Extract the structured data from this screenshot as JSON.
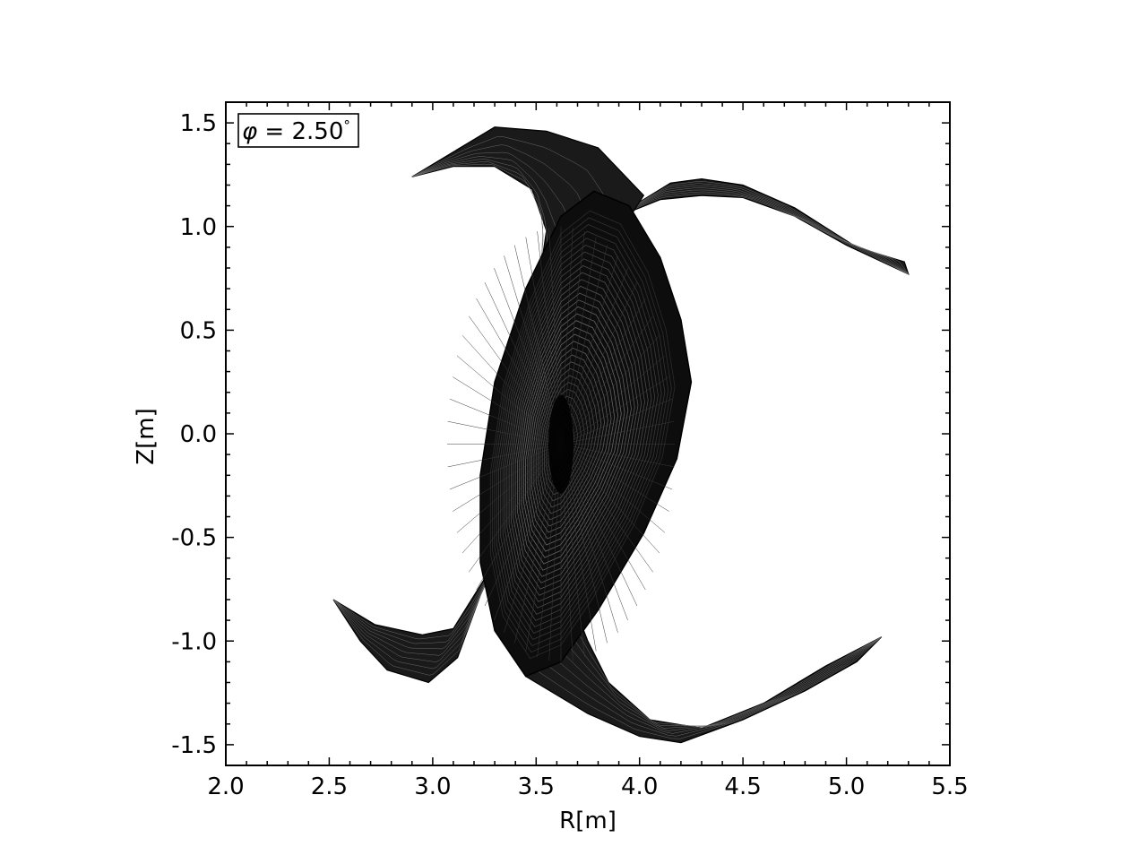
{
  "chart_data": {
    "type": "line",
    "title": "",
    "annotation": {
      "prefix": "φ",
      "equals": " = 2.50",
      "degree": "°"
    },
    "xlabel": "R[m]",
    "ylabel": "Z[m]",
    "xlim": [
      2.0,
      5.5
    ],
    "ylim": [
      -1.6,
      1.6
    ],
    "x_ticks": [
      2.0,
      2.5,
      3.0,
      3.5,
      4.0,
      4.5,
      5.0,
      5.5
    ],
    "x_tick_labels": [
      "2.0",
      "2.5",
      "3.0",
      "3.5",
      "4.0",
      "4.5",
      "5.0",
      "5.5"
    ],
    "y_ticks": [
      1.5,
      1.0,
      0.5,
      0.0,
      -0.5,
      -1.0,
      -1.5
    ],
    "y_tick_labels": [
      "1.5",
      "1.0",
      "0.5",
      "0.0",
      "-0.5",
      "-1.0",
      "-1.5"
    ],
    "minor_tick_step_x": 0.1,
    "minor_tick_step_y": 0.1,
    "ticks_direction": "in",
    "ticks_on_all_sides": true,
    "grid": false,
    "line_color": "#000000",
    "center": [
      3.62,
      -0.05
    ],
    "core_outer_boundary": [
      [
        4.25,
        0.25
      ],
      [
        4.2,
        0.55
      ],
      [
        4.1,
        0.85
      ],
      [
        3.95,
        1.1
      ],
      [
        3.78,
        1.17
      ],
      [
        3.62,
        1.05
      ],
      [
        3.45,
        0.7
      ],
      [
        3.3,
        0.25
      ],
      [
        3.23,
        -0.2
      ],
      [
        3.23,
        -0.62
      ],
      [
        3.3,
        -0.95
      ],
      [
        3.45,
        -1.17
      ],
      [
        3.62,
        -1.1
      ],
      [
        3.8,
        -0.85
      ],
      [
        4.02,
        -0.48
      ],
      [
        4.18,
        -0.12
      ],
      [
        4.25,
        0.25
      ]
    ],
    "legs": [
      {
        "outer": [
          [
            3.97,
            1.1
          ],
          [
            4.15,
            1.21
          ],
          [
            4.3,
            1.23
          ],
          [
            4.5,
            1.2
          ],
          [
            4.75,
            1.09
          ],
          [
            5.05,
            0.9
          ],
          [
            5.28,
            0.83
          ],
          [
            5.3,
            0.77
          ]
        ],
        "inner": [
          [
            5.3,
            0.77
          ],
          [
            5.0,
            0.91
          ],
          [
            4.75,
            1.05
          ],
          [
            4.5,
            1.14
          ],
          [
            4.3,
            1.15
          ],
          [
            4.1,
            1.13
          ],
          [
            3.9,
            1.05
          ]
        ]
      },
      {
        "outer": [
          [
            4.02,
            1.15
          ],
          [
            3.8,
            1.38
          ],
          [
            3.55,
            1.46
          ],
          [
            3.3,
            1.48
          ],
          [
            3.1,
            1.36
          ],
          [
            2.9,
            1.24
          ]
        ],
        "inner": [
          [
            2.9,
            1.24
          ],
          [
            3.1,
            1.29
          ],
          [
            3.3,
            1.29
          ],
          [
            3.48,
            1.18
          ],
          [
            3.55,
            0.98
          ],
          [
            3.52,
            0.78
          ],
          [
            3.45,
            0.6
          ],
          [
            3.35,
            0.3
          ],
          [
            3.28,
            0.0
          ]
        ]
      },
      {
        "outer": [
          [
            3.23,
            -0.78
          ],
          [
            3.12,
            -1.08
          ],
          [
            2.98,
            -1.2
          ],
          [
            2.78,
            -1.14
          ],
          [
            2.65,
            -1.0
          ],
          [
            2.52,
            -0.8
          ]
        ],
        "inner": [
          [
            2.52,
            -0.8
          ],
          [
            2.72,
            -0.92
          ],
          [
            2.95,
            -0.97
          ],
          [
            3.1,
            -0.94
          ],
          [
            3.2,
            -0.78
          ],
          [
            3.3,
            -0.62
          ]
        ]
      },
      {
        "outer": [
          [
            3.45,
            -1.17
          ],
          [
            3.75,
            -1.35
          ],
          [
            4.0,
            -1.46
          ],
          [
            4.2,
            -1.49
          ],
          [
            4.5,
            -1.38
          ],
          [
            4.8,
            -1.24
          ],
          [
            5.05,
            -1.1
          ],
          [
            5.17,
            -0.98
          ]
        ],
        "inner": [
          [
            5.17,
            -0.98
          ],
          [
            4.9,
            -1.12
          ],
          [
            4.6,
            -1.3
          ],
          [
            4.3,
            -1.42
          ],
          [
            4.05,
            -1.38
          ],
          [
            3.85,
            -1.2
          ],
          [
            3.75,
            -1.0
          ],
          [
            3.68,
            -0.82
          ]
        ]
      }
    ]
  }
}
